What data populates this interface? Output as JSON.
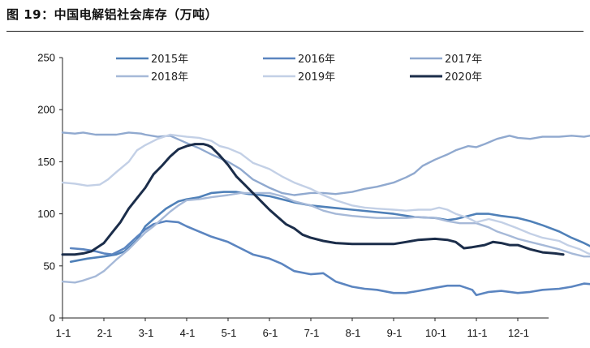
{
  "figure_title": "图 19：中国电解铝社会库存（万吨）",
  "chart_data": {
    "type": "line",
    "title": "",
    "xlabel": "",
    "ylabel": "",
    "x_ticks": [
      "1-1",
      "2-1",
      "3-1",
      "4-1",
      "5-1",
      "6-1",
      "7-1",
      "8-1",
      "9-1",
      "10-1",
      "11-1",
      "12-1"
    ],
    "x_range_months": [
      0,
      12
    ],
    "ylim": [
      0,
      250
    ],
    "y_ticks": [
      0,
      50,
      100,
      150,
      200,
      250
    ],
    "grid": false,
    "legend_position": "top",
    "series": [
      {
        "name": "2015年",
        "color": "#4f80b8",
        "width": 2.6,
        "points": [
          [
            0.2,
            54
          ],
          [
            0.6,
            57
          ],
          [
            1.0,
            59
          ],
          [
            1.3,
            61
          ],
          [
            1.5,
            64
          ],
          [
            1.8,
            75
          ],
          [
            2.0,
            88
          ],
          [
            2.2,
            95
          ],
          [
            2.5,
            105
          ],
          [
            2.8,
            112
          ],
          [
            3.0,
            114
          ],
          [
            3.3,
            116
          ],
          [
            3.6,
            120
          ],
          [
            3.9,
            121
          ],
          [
            4.2,
            121
          ],
          [
            4.5,
            119
          ],
          [
            4.8,
            118
          ],
          [
            5.0,
            117
          ],
          [
            5.3,
            114
          ],
          [
            5.6,
            111
          ],
          [
            6.0,
            108
          ],
          [
            6.5,
            106
          ],
          [
            7.0,
            104
          ],
          [
            7.5,
            102
          ],
          [
            8.0,
            100
          ],
          [
            8.5,
            97
          ],
          [
            9.0,
            96
          ],
          [
            9.3,
            94
          ],
          [
            9.5,
            95
          ],
          [
            9.8,
            98
          ],
          [
            10.0,
            100
          ],
          [
            10.3,
            100
          ],
          [
            10.6,
            98
          ],
          [
            11.0,
            96
          ],
          [
            11.3,
            93
          ],
          [
            11.6,
            89
          ],
          [
            12.0,
            83
          ],
          [
            12.3,
            77
          ],
          [
            12.6,
            72
          ],
          [
            12.9,
            66
          ]
        ]
      },
      {
        "name": "2016年",
        "color": "#5b85c0",
        "width": 2.6,
        "points": [
          [
            0.2,
            67
          ],
          [
            0.5,
            66
          ],
          [
            0.8,
            64
          ],
          [
            1.0,
            62
          ],
          [
            1.2,
            61
          ],
          [
            1.5,
            67
          ],
          [
            1.8,
            78
          ],
          [
            2.0,
            85
          ],
          [
            2.2,
            90
          ],
          [
            2.5,
            93
          ],
          [
            2.8,
            92
          ],
          [
            3.0,
            88
          ],
          [
            3.3,
            83
          ],
          [
            3.6,
            78
          ],
          [
            4.0,
            73
          ],
          [
            4.3,
            67
          ],
          [
            4.6,
            61
          ],
          [
            5.0,
            57
          ],
          [
            5.3,
            52
          ],
          [
            5.6,
            45
          ],
          [
            6.0,
            42
          ],
          [
            6.3,
            43
          ],
          [
            6.6,
            35
          ],
          [
            7.0,
            30
          ],
          [
            7.3,
            28
          ],
          [
            7.6,
            27
          ],
          [
            8.0,
            24
          ],
          [
            8.3,
            24
          ],
          [
            8.6,
            26
          ],
          [
            9.0,
            29
          ],
          [
            9.3,
            31
          ],
          [
            9.6,
            31
          ],
          [
            9.9,
            27
          ],
          [
            10.0,
            22
          ],
          [
            10.3,
            25
          ],
          [
            10.6,
            26
          ],
          [
            11.0,
            24
          ],
          [
            11.3,
            25
          ],
          [
            11.6,
            27
          ],
          [
            12.0,
            28
          ],
          [
            12.3,
            30
          ],
          [
            12.6,
            33
          ],
          [
            12.9,
            32
          ]
        ]
      },
      {
        "name": "2017年",
        "color": "#90a9cf",
        "width": 2.4,
        "points": [
          [
            0.0,
            178
          ],
          [
            0.3,
            177
          ],
          [
            0.5,
            178
          ],
          [
            0.8,
            176
          ],
          [
            1.0,
            176
          ],
          [
            1.3,
            176
          ],
          [
            1.6,
            178
          ],
          [
            1.9,
            177
          ],
          [
            2.0,
            176
          ],
          [
            2.3,
            174
          ],
          [
            2.6,
            175
          ],
          [
            3.0,
            168
          ],
          [
            3.3,
            163
          ],
          [
            3.6,
            157
          ],
          [
            4.0,
            150
          ],
          [
            4.3,
            143
          ],
          [
            4.6,
            133
          ],
          [
            5.0,
            125
          ],
          [
            5.3,
            120
          ],
          [
            5.6,
            118
          ],
          [
            6.0,
            120
          ],
          [
            6.3,
            120
          ],
          [
            6.6,
            119
          ],
          [
            7.0,
            121
          ],
          [
            7.3,
            124
          ],
          [
            7.6,
            126
          ],
          [
            8.0,
            130
          ],
          [
            8.3,
            135
          ],
          [
            8.5,
            139
          ],
          [
            8.7,
            146
          ],
          [
            9.0,
            152
          ],
          [
            9.3,
            157
          ],
          [
            9.5,
            161
          ],
          [
            9.8,
            165
          ],
          [
            10.0,
            164
          ],
          [
            10.2,
            167
          ],
          [
            10.5,
            172
          ],
          [
            10.8,
            175
          ],
          [
            11.0,
            173
          ],
          [
            11.3,
            172
          ],
          [
            11.6,
            174
          ],
          [
            12.0,
            174
          ],
          [
            12.3,
            175
          ],
          [
            12.6,
            174
          ],
          [
            12.9,
            176
          ]
        ]
      },
      {
        "name": "2018年",
        "color": "#a6b9d8",
        "width": 2.4,
        "points": [
          [
            0.0,
            35
          ],
          [
            0.3,
            34
          ],
          [
            0.5,
            36
          ],
          [
            0.8,
            40
          ],
          [
            1.0,
            45
          ],
          [
            1.3,
            56
          ],
          [
            1.6,
            66
          ],
          [
            2.0,
            82
          ],
          [
            2.2,
            88
          ],
          [
            2.4,
            95
          ],
          [
            2.6,
            102
          ],
          [
            2.8,
            108
          ],
          [
            3.0,
            113
          ],
          [
            3.3,
            114
          ],
          [
            3.6,
            116
          ],
          [
            4.0,
            118
          ],
          [
            4.3,
            120
          ],
          [
            4.6,
            120
          ],
          [
            5.0,
            120
          ],
          [
            5.3,
            117
          ],
          [
            5.6,
            112
          ],
          [
            6.0,
            108
          ],
          [
            6.3,
            103
          ],
          [
            6.6,
            100
          ],
          [
            7.0,
            98
          ],
          [
            7.3,
            97
          ],
          [
            7.6,
            96
          ],
          [
            8.0,
            96
          ],
          [
            8.3,
            96
          ],
          [
            8.6,
            97
          ],
          [
            9.0,
            96
          ],
          [
            9.3,
            93
          ],
          [
            9.6,
            91
          ],
          [
            10.0,
            91
          ],
          [
            10.3,
            87
          ],
          [
            10.5,
            83
          ],
          [
            10.8,
            79
          ],
          [
            11.0,
            76
          ],
          [
            11.3,
            73
          ],
          [
            11.6,
            70
          ],
          [
            12.0,
            66
          ],
          [
            12.3,
            62
          ],
          [
            12.6,
            59
          ],
          [
            12.9,
            59
          ]
        ]
      },
      {
        "name": "2019年",
        "color": "#c3d0e6",
        "width": 2.4,
        "points": [
          [
            0.0,
            130
          ],
          [
            0.3,
            129
          ],
          [
            0.6,
            127
          ],
          [
            0.9,
            128
          ],
          [
            1.1,
            133
          ],
          [
            1.3,
            140
          ],
          [
            1.6,
            150
          ],
          [
            1.8,
            161
          ],
          [
            2.0,
            166
          ],
          [
            2.3,
            172
          ],
          [
            2.6,
            176
          ],
          [
            2.8,
            175
          ],
          [
            3.0,
            174
          ],
          [
            3.3,
            173
          ],
          [
            3.6,
            170
          ],
          [
            3.8,
            165
          ],
          [
            4.0,
            163
          ],
          [
            4.3,
            158
          ],
          [
            4.6,
            149
          ],
          [
            5.0,
            143
          ],
          [
            5.3,
            136
          ],
          [
            5.6,
            130
          ],
          [
            6.0,
            124
          ],
          [
            6.3,
            118
          ],
          [
            6.6,
            113
          ],
          [
            7.0,
            108
          ],
          [
            7.3,
            106
          ],
          [
            7.6,
            105
          ],
          [
            8.0,
            104
          ],
          [
            8.3,
            103
          ],
          [
            8.6,
            104
          ],
          [
            8.9,
            104
          ],
          [
            9.1,
            106
          ],
          [
            9.3,
            104
          ],
          [
            9.5,
            100
          ],
          [
            9.8,
            96
          ],
          [
            10.0,
            92
          ],
          [
            10.3,
            95
          ],
          [
            10.6,
            92
          ],
          [
            11.0,
            86
          ],
          [
            11.3,
            81
          ],
          [
            11.6,
            77
          ],
          [
            12.0,
            74
          ],
          [
            12.2,
            70
          ],
          [
            12.5,
            66
          ],
          [
            12.7,
            62
          ],
          [
            12.9,
            60
          ]
        ]
      },
      {
        "name": "2020年",
        "color": "#1b2d4a",
        "width": 3.0,
        "points": [
          [
            0.0,
            61
          ],
          [
            0.3,
            61
          ],
          [
            0.5,
            62
          ],
          [
            0.7,
            64
          ],
          [
            1.0,
            72
          ],
          [
            1.2,
            82
          ],
          [
            1.4,
            92
          ],
          [
            1.6,
            105
          ],
          [
            1.8,
            115
          ],
          [
            2.0,
            125
          ],
          [
            2.2,
            138
          ],
          [
            2.4,
            146
          ],
          [
            2.6,
            155
          ],
          [
            2.8,
            162
          ],
          [
            3.0,
            165
          ],
          [
            3.2,
            167
          ],
          [
            3.4,
            167
          ],
          [
            3.5,
            166
          ],
          [
            3.6,
            164
          ],
          [
            3.8,
            156
          ],
          [
            4.0,
            147
          ],
          [
            4.2,
            136
          ],
          [
            4.4,
            128
          ],
          [
            4.6,
            120
          ],
          [
            4.8,
            112
          ],
          [
            5.0,
            104
          ],
          [
            5.2,
            97
          ],
          [
            5.4,
            90
          ],
          [
            5.6,
            86
          ],
          [
            5.8,
            80
          ],
          [
            6.0,
            77
          ],
          [
            6.3,
            74
          ],
          [
            6.6,
            72
          ],
          [
            7.0,
            71
          ],
          [
            7.3,
            71
          ],
          [
            7.6,
            71
          ],
          [
            8.0,
            71
          ],
          [
            8.3,
            73
          ],
          [
            8.6,
            75
          ],
          [
            9.0,
            76
          ],
          [
            9.3,
            75
          ],
          [
            9.5,
            73
          ],
          [
            9.7,
            67
          ],
          [
            9.9,
            68
          ],
          [
            10.2,
            70
          ],
          [
            10.4,
            73
          ],
          [
            10.6,
            72
          ],
          [
            10.8,
            70
          ],
          [
            11.0,
            70
          ],
          [
            11.3,
            66
          ],
          [
            11.6,
            63
          ],
          [
            11.9,
            62
          ],
          [
            12.1,
            61
          ]
        ]
      }
    ]
  }
}
